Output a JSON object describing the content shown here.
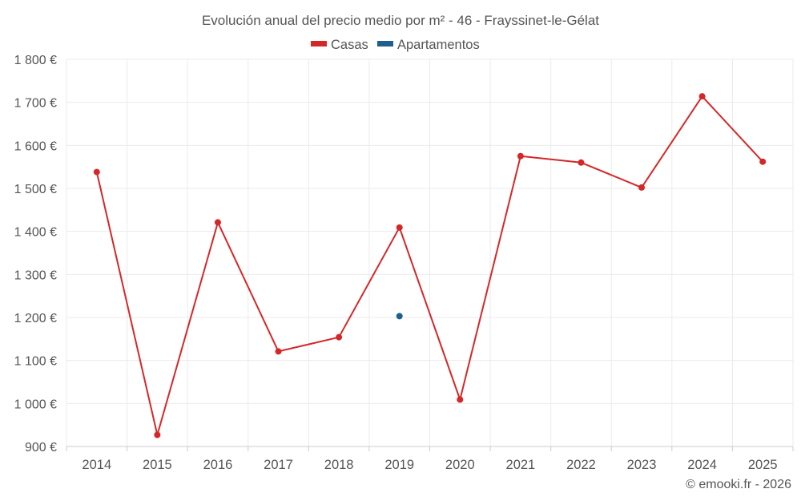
{
  "chart_data": {
    "type": "line",
    "title": "Evolución anual del precio medio por m² - 46 - Frayssinet-le-Gélat",
    "categories": [
      "2014",
      "2015",
      "2016",
      "2017",
      "2018",
      "2019",
      "2020",
      "2021",
      "2022",
      "2023",
      "2024",
      "2025"
    ],
    "series": [
      {
        "name": "Casas",
        "color": "#d62728",
        "values": [
          1538,
          927,
          1421,
          1121,
          1154,
          1409,
          1009,
          1575,
          1560,
          1502,
          1714,
          1562
        ]
      },
      {
        "name": "Apartamentos",
        "color": "#1f5f8b",
        "values": [
          null,
          null,
          null,
          null,
          null,
          1203,
          null,
          null,
          null,
          null,
          null,
          null
        ]
      }
    ],
    "ylim": [
      900,
      1800
    ],
    "yticks": [
      900,
      1000,
      1100,
      1200,
      1300,
      1400,
      1500,
      1600,
      1700,
      1800
    ],
    "ytick_labels": [
      "900 €",
      "1 000 €",
      "1 100 €",
      "1 200 €",
      "1 300 €",
      "1 400 €",
      "1 500 €",
      "1 600 €",
      "1 700 €",
      "1 800 €"
    ],
    "xlabel": "",
    "ylabel": "",
    "legend_position": "top-center",
    "grid": true
  },
  "credit": "© emooki.fr - 2026"
}
